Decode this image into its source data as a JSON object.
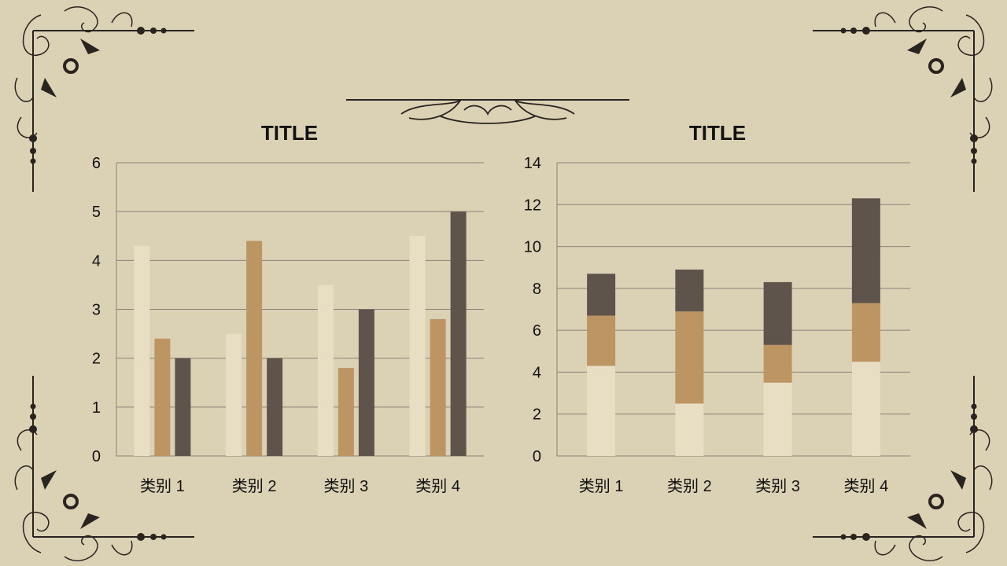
{
  "colors": {
    "background": "#dbd1b4",
    "series1": "#e7dec4",
    "series2": "#bd9563",
    "series3": "#5f544c",
    "grid": "#8a8378",
    "ornament": "#2a2420"
  },
  "chart_data": [
    {
      "type": "bar",
      "title": "TITLE",
      "categories": [
        "类别 1",
        "类别 2",
        "类别 3",
        "类别 4"
      ],
      "series": [
        {
          "values": [
            4.3,
            2.5,
            3.5,
            4.5
          ]
        },
        {
          "values": [
            2.4,
            4.4,
            1.8,
            2.8
          ]
        },
        {
          "values": [
            2,
            2,
            3,
            5
          ]
        }
      ],
      "ylim": [
        0,
        6
      ],
      "yticks": [
        "0",
        "1",
        "2",
        "3",
        "4",
        "5",
        "6"
      ],
      "grid": true,
      "legend": "none"
    },
    {
      "type": "bar",
      "stacked": true,
      "title": "TITLE",
      "categories": [
        "类别 1",
        "类别 2",
        "类别 3",
        "类别 4"
      ],
      "series": [
        {
          "values": [
            4.3,
            2.5,
            3.5,
            4.5
          ]
        },
        {
          "values": [
            2.4,
            4.4,
            1.8,
            2.8
          ]
        },
        {
          "values": [
            2,
            2,
            3,
            5
          ]
        }
      ],
      "ylim": [
        0,
        14
      ],
      "yticks": [
        "0",
        "2",
        "4",
        "6",
        "8",
        "10",
        "12",
        "14"
      ],
      "grid": true,
      "legend": "none"
    }
  ]
}
